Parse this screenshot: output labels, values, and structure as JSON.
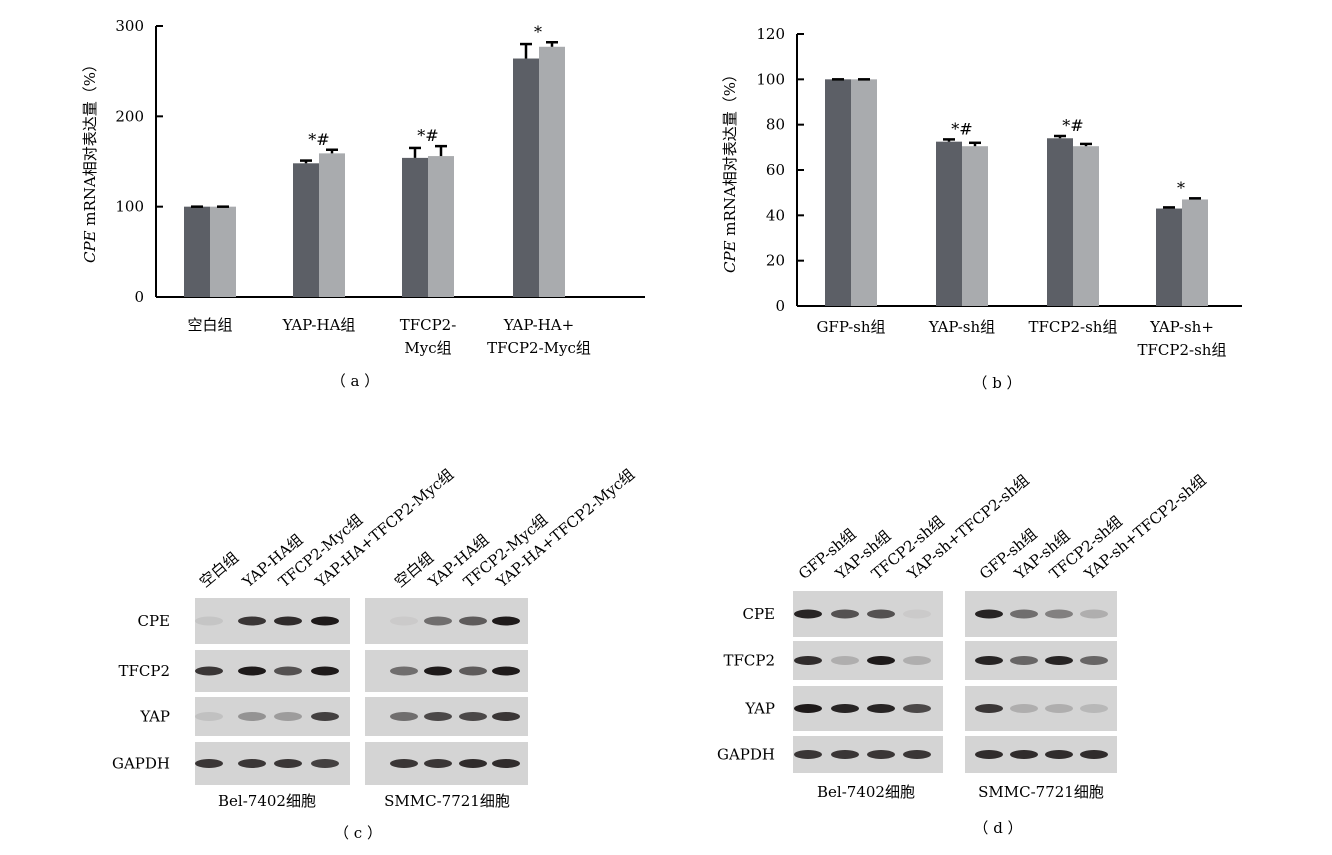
{
  "chart_data": [
    {
      "panel_label": "（ a ）",
      "type": "bar",
      "ylabel_italic": "CPE",
      "ylabel_rest": " mRNA相对表达量（%）",
      "ylim": [
        0,
        300
      ],
      "yticks": [
        0,
        100,
        200,
        300
      ],
      "categories": [
        [
          "空白组"
        ],
        [
          "YAP-HA组"
        ],
        [
          "TFCP2-",
          "Myc组"
        ],
        [
          "YAP-HA+",
          "TFCP2-Myc组"
        ]
      ],
      "series": [
        {
          "color": "#5c5f66",
          "values": [
            100,
            148,
            154,
            264
          ],
          "errors": [
            0,
            3,
            11,
            16
          ]
        },
        {
          "color": "#a9abae",
          "values": [
            100,
            159,
            156,
            277
          ],
          "errors": [
            0,
            4,
            11,
            5
          ]
        }
      ],
      "annotations": [
        "",
        "*#",
        "*#",
        "*"
      ]
    },
    {
      "panel_label": "（ b ）",
      "type": "bar",
      "ylabel_italic": "CPE",
      "ylabel_rest": " mRNA相对表达量（%）",
      "ylim": [
        0,
        120
      ],
      "yticks": [
        0,
        20,
        40,
        60,
        80,
        100,
        120
      ],
      "categories": [
        [
          "GFP-sh组"
        ],
        [
          "YAP-sh组"
        ],
        [
          "TFCP2-sh组"
        ],
        [
          "YAP-sh+",
          "TFCP2-sh组"
        ]
      ],
      "series": [
        {
          "color": "#5c5f66",
          "values": [
            100,
            72.5,
            74,
            43
          ],
          "errors": [
            0,
            1,
            1,
            0.5
          ]
        },
        {
          "color": "#a9abae",
          "values": [
            100,
            70.5,
            70.5,
            47
          ],
          "errors": [
            0,
            1.5,
            1,
            0.5
          ]
        }
      ],
      "annotations": [
        "",
        "*#",
        "*#",
        "*"
      ]
    },
    {
      "panel_label": "（ c ）",
      "type": "western_blot",
      "lane_labels": [
        "空白组",
        "YAP-HA组",
        "TFCP2-Myc组",
        "YAP-HA+TFCP2-Myc组"
      ],
      "rows": [
        "CPE",
        "TFCP2",
        "YAP",
        "GAPDH"
      ],
      "cell_lines": [
        "Bel-7402细胞",
        "SMMC-7721细胞"
      ]
    },
    {
      "panel_label": "（ d ）",
      "type": "western_blot",
      "lane_labels": [
        "GFP-sh组",
        "YAP-sh组",
        "TFCP2-sh组",
        "YAP-sh+TFCP2-sh组"
      ],
      "rows": [
        "CPE",
        "TFCP2",
        "YAP",
        "GAPDH"
      ],
      "cell_lines": [
        "Bel-7402细胞",
        "SMMC-7721细胞"
      ]
    }
  ]
}
